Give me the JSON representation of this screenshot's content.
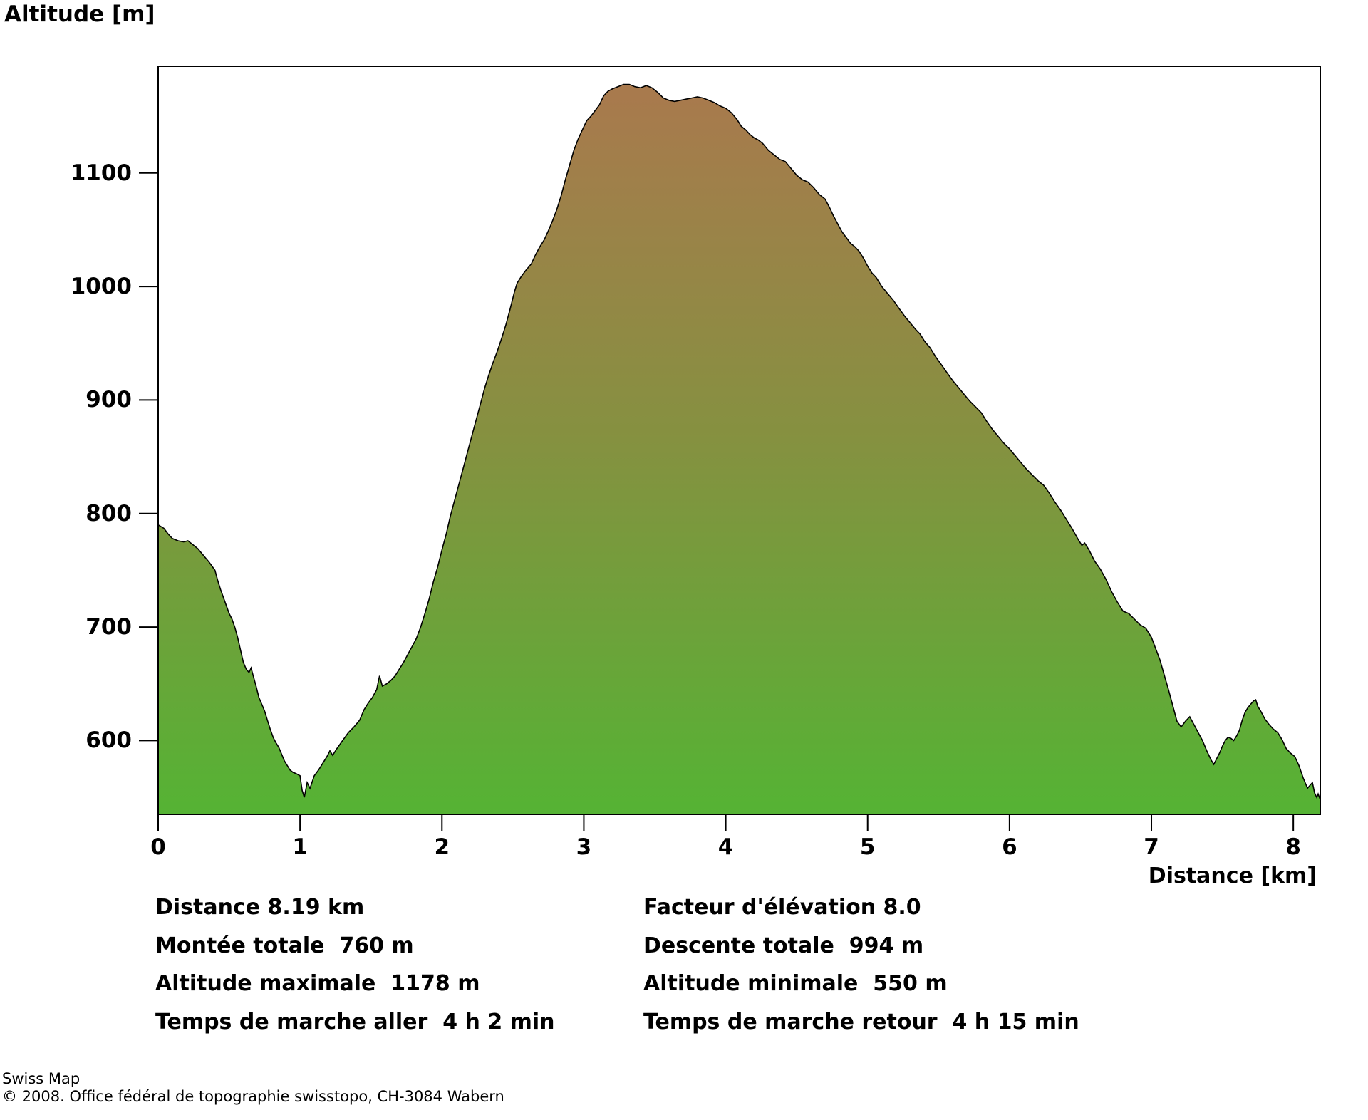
{
  "title": "Altitude [m]",
  "chart_data": {
    "type": "area",
    "title": "Altitude [m]",
    "xlabel": "Distance [km]",
    "ylabel": "Altitude [m]",
    "xlim": [
      0,
      8.19
    ],
    "ylim": [
      535,
      1194
    ],
    "x_ticks": [
      0,
      1,
      2,
      3,
      4,
      5,
      6,
      7,
      8
    ],
    "y_ticks": [
      600,
      700,
      800,
      900,
      1000,
      1100
    ],
    "grid": false,
    "legend": false,
    "outline_color": "#000000",
    "fill_gradient": {
      "top": "#ab784e",
      "middle": "#859140",
      "bottom": "#55b334"
    },
    "profile": [
      [
        0.0,
        790
      ],
      [
        0.04,
        787
      ],
      [
        0.07,
        782
      ],
      [
        0.1,
        778
      ],
      [
        0.14,
        776
      ],
      [
        0.18,
        775
      ],
      [
        0.21,
        776
      ],
      [
        0.24,
        773
      ],
      [
        0.28,
        769
      ],
      [
        0.32,
        763
      ],
      [
        0.36,
        757
      ],
      [
        0.4,
        750
      ],
      [
        0.42,
        741
      ],
      [
        0.44,
        733
      ],
      [
        0.46,
        726
      ],
      [
        0.48,
        719
      ],
      [
        0.5,
        712
      ],
      [
        0.52,
        707
      ],
      [
        0.54,
        700
      ],
      [
        0.56,
        691
      ],
      [
        0.58,
        680
      ],
      [
        0.6,
        669
      ],
      [
        0.62,
        663
      ],
      [
        0.64,
        660
      ],
      [
        0.655,
        664
      ],
      [
        0.67,
        657
      ],
      [
        0.69,
        648
      ],
      [
        0.71,
        638
      ],
      [
        0.73,
        632
      ],
      [
        0.75,
        626
      ],
      [
        0.77,
        618
      ],
      [
        0.79,
        610
      ],
      [
        0.81,
        603
      ],
      [
        0.83,
        598
      ],
      [
        0.85,
        594
      ],
      [
        0.87,
        588
      ],
      [
        0.89,
        582
      ],
      [
        0.91,
        578
      ],
      [
        0.93,
        574
      ],
      [
        0.95,
        572
      ],
      [
        0.97,
        571
      ],
      [
        1.0,
        569
      ],
      [
        1.015,
        556
      ],
      [
        1.03,
        550
      ],
      [
        1.05,
        563
      ],
      [
        1.07,
        558
      ],
      [
        1.1,
        569
      ],
      [
        1.13,
        574
      ],
      [
        1.16,
        580
      ],
      [
        1.19,
        586
      ],
      [
        1.21,
        591
      ],
      [
        1.23,
        587
      ],
      [
        1.26,
        593
      ],
      [
        1.3,
        600
      ],
      [
        1.34,
        607
      ],
      [
        1.38,
        612
      ],
      [
        1.42,
        618
      ],
      [
        1.45,
        627
      ],
      [
        1.48,
        633
      ],
      [
        1.51,
        638
      ],
      [
        1.54,
        645
      ],
      [
        1.56,
        657
      ],
      [
        1.58,
        648
      ],
      [
        1.61,
        650
      ],
      [
        1.64,
        653
      ],
      [
        1.67,
        657
      ],
      [
        1.7,
        663
      ],
      [
        1.73,
        669
      ],
      [
        1.76,
        676
      ],
      [
        1.79,
        683
      ],
      [
        1.82,
        690
      ],
      [
        1.85,
        700
      ],
      [
        1.88,
        712
      ],
      [
        1.91,
        725
      ],
      [
        1.94,
        740
      ],
      [
        1.97,
        753
      ],
      [
        2.0,
        768
      ],
      [
        2.03,
        782
      ],
      [
        2.06,
        798
      ],
      [
        2.09,
        812
      ],
      [
        2.12,
        826
      ],
      [
        2.15,
        840
      ],
      [
        2.18,
        854
      ],
      [
        2.21,
        868
      ],
      [
        2.24,
        882
      ],
      [
        2.27,
        896
      ],
      [
        2.3,
        910
      ],
      [
        2.33,
        922
      ],
      [
        2.36,
        933
      ],
      [
        2.39,
        943
      ],
      [
        2.42,
        954
      ],
      [
        2.45,
        966
      ],
      [
        2.48,
        980
      ],
      [
        2.51,
        995
      ],
      [
        2.53,
        1003
      ],
      [
        2.56,
        1009
      ],
      [
        2.59,
        1014
      ],
      [
        2.61,
        1017
      ],
      [
        2.63,
        1020
      ],
      [
        2.66,
        1028
      ],
      [
        2.69,
        1035
      ],
      [
        2.72,
        1041
      ],
      [
        2.75,
        1049
      ],
      [
        2.78,
        1058
      ],
      [
        2.81,
        1068
      ],
      [
        2.84,
        1080
      ],
      [
        2.87,
        1094
      ],
      [
        2.9,
        1107
      ],
      [
        2.93,
        1120
      ],
      [
        2.96,
        1130
      ],
      [
        2.99,
        1138
      ],
      [
        3.02,
        1146
      ],
      [
        3.05,
        1150
      ],
      [
        3.08,
        1155
      ],
      [
        3.11,
        1160
      ],
      [
        3.14,
        1168
      ],
      [
        3.17,
        1172
      ],
      [
        3.2,
        1174
      ],
      [
        3.24,
        1176
      ],
      [
        3.28,
        1178
      ],
      [
        3.32,
        1178
      ],
      [
        3.36,
        1176
      ],
      [
        3.4,
        1175
      ],
      [
        3.44,
        1177
      ],
      [
        3.48,
        1175
      ],
      [
        3.52,
        1171
      ],
      [
        3.56,
        1166
      ],
      [
        3.6,
        1164
      ],
      [
        3.64,
        1163
      ],
      [
        3.68,
        1164
      ],
      [
        3.72,
        1165
      ],
      [
        3.76,
        1166
      ],
      [
        3.8,
        1167
      ],
      [
        3.84,
        1166
      ],
      [
        3.88,
        1164
      ],
      [
        3.92,
        1162
      ],
      [
        3.96,
        1159
      ],
      [
        4.0,
        1157
      ],
      [
        4.04,
        1153
      ],
      [
        4.08,
        1147
      ],
      [
        4.11,
        1141
      ],
      [
        4.14,
        1138
      ],
      [
        4.17,
        1134
      ],
      [
        4.2,
        1131
      ],
      [
        4.23,
        1129
      ],
      [
        4.26,
        1126
      ],
      [
        4.3,
        1120
      ],
      [
        4.34,
        1116
      ],
      [
        4.38,
        1112
      ],
      [
        4.42,
        1110
      ],
      [
        4.46,
        1104
      ],
      [
        4.5,
        1098
      ],
      [
        4.54,
        1094
      ],
      [
        4.58,
        1092
      ],
      [
        4.62,
        1087
      ],
      [
        4.66,
        1081
      ],
      [
        4.7,
        1077
      ],
      [
        4.73,
        1070
      ],
      [
        4.76,
        1062
      ],
      [
        4.79,
        1055
      ],
      [
        4.82,
        1048
      ],
      [
        4.85,
        1043
      ],
      [
        4.88,
        1038
      ],
      [
        4.91,
        1035
      ],
      [
        4.94,
        1031
      ],
      [
        4.97,
        1025
      ],
      [
        5.0,
        1018
      ],
      [
        5.03,
        1012
      ],
      [
        5.06,
        1008
      ],
      [
        5.1,
        1000
      ],
      [
        5.14,
        994
      ],
      [
        5.18,
        988
      ],
      [
        5.22,
        981
      ],
      [
        5.26,
        974
      ],
      [
        5.3,
        968
      ],
      [
        5.34,
        962
      ],
      [
        5.37,
        958
      ],
      [
        5.4,
        952
      ],
      [
        5.44,
        946
      ],
      [
        5.48,
        938
      ],
      [
        5.52,
        931
      ],
      [
        5.56,
        924
      ],
      [
        5.6,
        917
      ],
      [
        5.64,
        911
      ],
      [
        5.68,
        905
      ],
      [
        5.72,
        899
      ],
      [
        5.76,
        894
      ],
      [
        5.8,
        889
      ],
      [
        5.84,
        881
      ],
      [
        5.88,
        874
      ],
      [
        5.92,
        868
      ],
      [
        5.96,
        862
      ],
      [
        6.0,
        857
      ],
      [
        6.04,
        851
      ],
      [
        6.08,
        845
      ],
      [
        6.12,
        839
      ],
      [
        6.16,
        834
      ],
      [
        6.2,
        829
      ],
      [
        6.24,
        825
      ],
      [
        6.28,
        818
      ],
      [
        6.32,
        810
      ],
      [
        6.36,
        803
      ],
      [
        6.4,
        795
      ],
      [
        6.44,
        787
      ],
      [
        6.48,
        778
      ],
      [
        6.51,
        772
      ],
      [
        6.53,
        774
      ],
      [
        6.56,
        768
      ],
      [
        6.6,
        758
      ],
      [
        6.64,
        751
      ],
      [
        6.68,
        742
      ],
      [
        6.72,
        731
      ],
      [
        6.76,
        722
      ],
      [
        6.8,
        714
      ],
      [
        6.84,
        712
      ],
      [
        6.88,
        707
      ],
      [
        6.92,
        702
      ],
      [
        6.96,
        699
      ],
      [
        7.0,
        691
      ],
      [
        7.03,
        681
      ],
      [
        7.06,
        671
      ],
      [
        7.09,
        658
      ],
      [
        7.12,
        645
      ],
      [
        7.15,
        631
      ],
      [
        7.18,
        617
      ],
      [
        7.21,
        612
      ],
      [
        7.24,
        617
      ],
      [
        7.27,
        621
      ],
      [
        7.3,
        614
      ],
      [
        7.33,
        607
      ],
      [
        7.36,
        600
      ],
      [
        7.39,
        591
      ],
      [
        7.42,
        583
      ],
      [
        7.44,
        579
      ],
      [
        7.46,
        584
      ],
      [
        7.48,
        589
      ],
      [
        7.5,
        595
      ],
      [
        7.52,
        600
      ],
      [
        7.54,
        603
      ],
      [
        7.56,
        602
      ],
      [
        7.58,
        600
      ],
      [
        7.6,
        604
      ],
      [
        7.62,
        609
      ],
      [
        7.64,
        618
      ],
      [
        7.66,
        625
      ],
      [
        7.68,
        629
      ],
      [
        7.7,
        632
      ],
      [
        7.72,
        635
      ],
      [
        7.735,
        636
      ],
      [
        7.75,
        630
      ],
      [
        7.77,
        626
      ],
      [
        7.8,
        619
      ],
      [
        7.83,
        614
      ],
      [
        7.86,
        610
      ],
      [
        7.89,
        607
      ],
      [
        7.92,
        601
      ],
      [
        7.95,
        593
      ],
      [
        7.98,
        589
      ],
      [
        8.01,
        586
      ],
      [
        8.04,
        578
      ],
      [
        8.07,
        567
      ],
      [
        8.1,
        558
      ],
      [
        8.12,
        561
      ],
      [
        8.135,
        563
      ],
      [
        8.15,
        554
      ],
      [
        8.165,
        550
      ],
      [
        8.175,
        553
      ],
      [
        8.19,
        548
      ]
    ]
  },
  "stats": {
    "rows": [
      {
        "left": "Distance 8.19 km",
        "right": "Facteur d'élévation 8.0"
      },
      {
        "left": "Montée totale  760 m",
        "right": "Descente totale  994 m"
      },
      {
        "left": "Altitude maximale  1178 m",
        "right": "Altitude minimale  550 m"
      },
      {
        "left": "Temps de marche aller  4 h 2 min",
        "right": "Temps de marche retour  4 h 15 min"
      }
    ]
  },
  "footer": {
    "line1": "Swiss Map",
    "line2": "© 2008. Office fédéral de topographie swisstopo, CH-3084 Wabern"
  }
}
